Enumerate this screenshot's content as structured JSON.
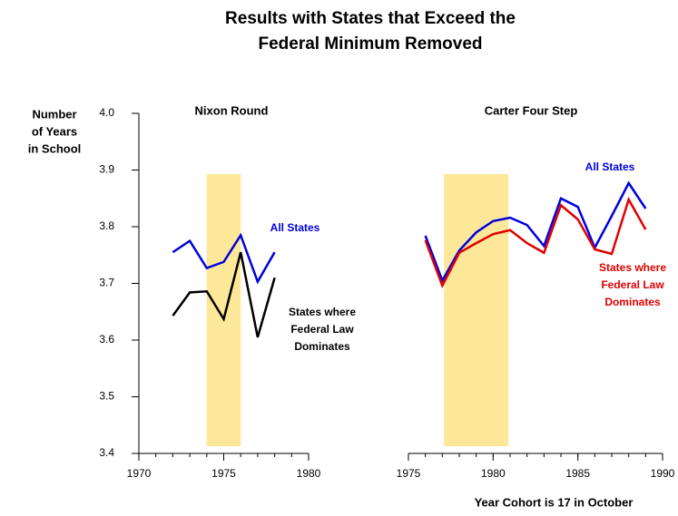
{
  "title": [
    "Results with States that Exceed the",
    "Federal Minimum Removed"
  ],
  "ylabel": [
    "Number",
    "of Years",
    "in School"
  ],
  "xlabel": "Year Cohort is 17 in October",
  "chart_data": [
    {
      "type": "line",
      "title": "Nixon Round",
      "x": [
        1972,
        1973,
        1974,
        1975,
        1976,
        1977,
        1978
      ],
      "xlim": [
        1970,
        1980
      ],
      "xticks": [
        1970,
        1975,
        1980
      ],
      "ylim": [
        3.4,
        4.0
      ],
      "yticks": [
        {
          "value": 3.4,
          "label": "3.4"
        },
        {
          "value": 3.5,
          "label": "3.5"
        },
        {
          "value": 3.6,
          "label": "3.6"
        },
        {
          "value": 3.7,
          "label": "3.7"
        },
        {
          "value": 3.8,
          "label": "3.8"
        },
        {
          "value": 3.9,
          "label": "3.9"
        },
        {
          "value": 4.0,
          "label": "4.0"
        }
      ],
      "shade": [
        1974,
        1976
      ],
      "shade_color": "#fde89a",
      "series": [
        {
          "label": [
            "All States"
          ],
          "color": "#0000dd",
          "values": [
            3.755,
            3.775,
            3.727,
            3.738,
            3.785,
            3.703,
            3.755
          ]
        },
        {
          "label": [
            "States where",
            "Federal Law",
            "Dominates"
          ],
          "color": "#000000",
          "values": [
            3.643,
            3.684,
            3.686,
            3.637,
            3.755,
            3.605,
            3.71
          ]
        }
      ]
    },
    {
      "type": "line",
      "title": "Carter Four Step",
      "x": [
        1976,
        1977,
        1978,
        1979,
        1980,
        1981,
        1982,
        1983,
        1984,
        1985,
        1986,
        1987,
        1988,
        1989
      ],
      "xlim": [
        1975,
        1990
      ],
      "xticks": [
        1975,
        1980,
        1985,
        1990
      ],
      "ylim": [
        3.4,
        4.0
      ],
      "shade": [
        1977.1,
        1980.9
      ],
      "shade_color": "#fde89a",
      "series": [
        {
          "label": [
            "All States"
          ],
          "color": "#0000dd",
          "values": [
            3.784,
            3.705,
            3.758,
            3.79,
            3.81,
            3.816,
            3.803,
            3.766,
            3.85,
            3.835,
            3.763,
            3.819,
            3.877,
            3.832
          ]
        },
        {
          "label": [
            "States where",
            "Federal Law",
            "Dominates"
          ],
          "color": "#e00000",
          "values": [
            3.776,
            3.696,
            3.754,
            3.771,
            3.787,
            3.794,
            3.771,
            3.754,
            3.838,
            3.813,
            3.76,
            3.752,
            3.848,
            3.795
          ]
        }
      ]
    }
  ]
}
